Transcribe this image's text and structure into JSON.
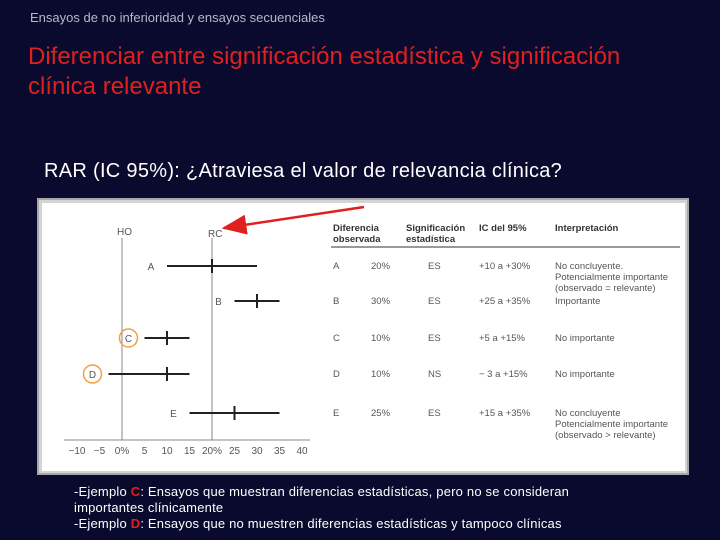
{
  "header": {
    "top_label": "Ensayos de no inferioridad y ensayos secuenciales",
    "title": "Diferenciar entre significación estadística y significación clínica relevante",
    "question": "RAR (IC 95%): ¿Atraviesa el valor de relevancia clínica?"
  },
  "figure": {
    "ref_labels": {
      "ho": "HO",
      "rc": "RC"
    },
    "axis_ticks": [
      "−10",
      "−5",
      "0%",
      "5",
      "10",
      "15",
      "20%",
      "25",
      "30",
      "35",
      "40"
    ],
    "table_headers": {
      "diferencia": [
        "Diferencia",
        "observada"
      ],
      "significacion": [
        "Significación",
        "estadística"
      ],
      "ic": [
        "IC del 95%"
      ],
      "interpretacion": [
        "Interpretación"
      ]
    },
    "rows": [
      {
        "label": "A",
        "diferencia": "20%",
        "significacion": "ES",
        "ic": "+10 a +30%",
        "interpretacion": [
          "No concluyente.",
          "Potencialmente importante",
          "(observado = relevante)"
        ],
        "point": 20,
        "ci_low": 10,
        "ci_high": 30
      },
      {
        "label": "B",
        "diferencia": "30%",
        "significacion": "ES",
        "ic": "+25 a +35%",
        "interpretacion": [
          "Importante"
        ],
        "point": 30,
        "ci_low": 25,
        "ci_high": 35
      },
      {
        "label": "C",
        "diferencia": "10%",
        "significacion": "ES",
        "ic": "+5 a +15%",
        "interpretacion": [
          "No importante"
        ],
        "point": 10,
        "ci_low": 5,
        "ci_high": 15
      },
      {
        "label": "D",
        "diferencia": "10%",
        "significacion": "NS",
        "ic": "− 3 a +15%",
        "interpretacion": [
          "No importante"
        ],
        "point": 10,
        "ci_low": -3,
        "ci_high": 15
      },
      {
        "label": "E",
        "diferencia": "25%",
        "significacion": "ES",
        "ic": "+15 a +35%",
        "interpretacion": [
          "No concluyente",
          "Potencialmente importante",
          "(observado > relevante)"
        ],
        "point": 25,
        "ci_low": 15,
        "ci_high": 35
      }
    ],
    "highlighted": [
      "C",
      "D"
    ],
    "colors": {
      "highlight_circle": "#f0a040",
      "arrow": "#e0201e",
      "text": "#555555"
    }
  },
  "notes": {
    "line1_prefix": "-Ejemplo ",
    "line1_key": "C",
    "line1_text": ": Ensayos que muestran diferencias estadísticas, pero no se consideran",
    "line2_text": "importantes clínicamente",
    "line3_prefix": "-Ejemplo ",
    "line3_key": "D",
    "line3_text": ": Ensayos que no muestren diferencias estadísticas y tampoco clínicas"
  }
}
